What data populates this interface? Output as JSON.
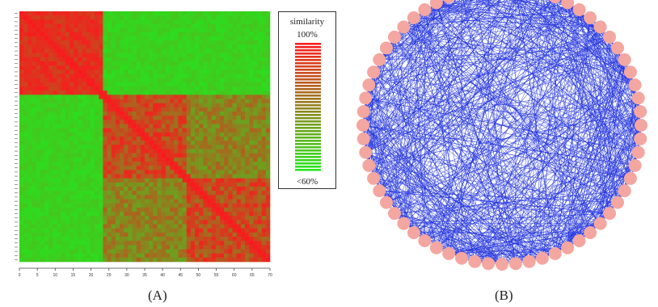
{
  "panels": {
    "a_label": "(A)",
    "b_label": "(B)"
  },
  "legend": {
    "title": "similarity",
    "max_label": "100%",
    "min_label": "<60%",
    "color_high": "#ff2a1a",
    "color_low": "#22ee22"
  },
  "colors": {
    "network_edge": "#2233dd",
    "network_node": "#f4a6a0"
  },
  "x_axis_ticks": [
    "0",
    "5",
    "10",
    "15",
    "20",
    "25",
    "30",
    "35",
    "40",
    "45",
    "50",
    "55",
    "60",
    "65",
    "70"
  ],
  "network": {
    "node_count": 64
  }
}
